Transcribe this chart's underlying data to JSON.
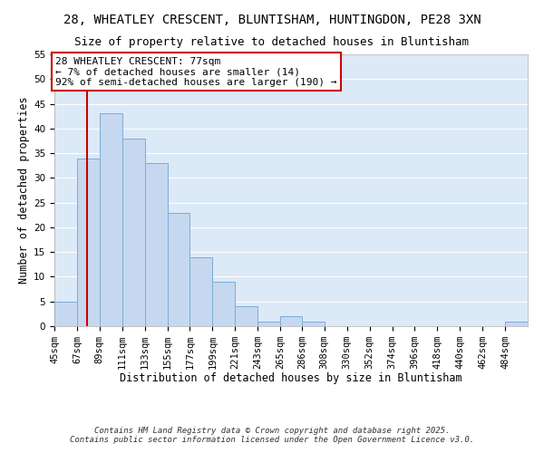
{
  "title": "28, WHEATLEY CRESCENT, BLUNTISHAM, HUNTINGDON, PE28 3XN",
  "subtitle": "Size of property relative to detached houses in Bluntisham",
  "xlabel": "Distribution of detached houses by size in Bluntisham",
  "ylabel": "Number of detached properties",
  "bar_values": [
    5,
    34,
    43,
    38,
    33,
    23,
    14,
    9,
    4,
    1,
    2,
    1,
    0,
    0,
    0,
    0,
    0,
    0,
    0,
    0,
    1
  ],
  "bin_edges": [
    45,
    67,
    89,
    111,
    133,
    155,
    177,
    199,
    221,
    243,
    265,
    286,
    308,
    330,
    352,
    374,
    396,
    418,
    440,
    462,
    484,
    506
  ],
  "tick_labels": [
    "45sqm",
    "67sqm",
    "89sqm",
    "111sqm",
    "133sqm",
    "155sqm",
    "177sqm",
    "199sqm",
    "221sqm",
    "243sqm",
    "265sqm",
    "286sqm",
    "308sqm",
    "330sqm",
    "352sqm",
    "374sqm",
    "396sqm",
    "418sqm",
    "440sqm",
    "462sqm",
    "484sqm"
  ],
  "bar_color": "#c5d8f0",
  "bar_edge_color": "#7badd4",
  "vline_x": 77,
  "vline_color": "#cc0000",
  "ylim": [
    0,
    55
  ],
  "yticks": [
    0,
    5,
    10,
    15,
    20,
    25,
    30,
    35,
    40,
    45,
    50,
    55
  ],
  "background_color": "#ffffff",
  "plot_bg_color": "#dce9f7",
  "grid_color": "#ffffff",
  "annotation_line1": "28 WHEATLEY CRESCENT: 77sqm",
  "annotation_line2": "← 7% of detached houses are smaller (14)",
  "annotation_line3": "92% of semi-detached houses are larger (190) →",
  "annotation_box_color": "#ffffff",
  "annotation_box_edge_color": "#cc0000",
  "footer_line1": "Contains HM Land Registry data © Crown copyright and database right 2025.",
  "footer_line2": "Contains public sector information licensed under the Open Government Licence v3.0.",
  "title_fontsize": 10,
  "subtitle_fontsize": 9,
  "label_fontsize": 8.5,
  "tick_fontsize": 7.5,
  "annotation_fontsize": 8,
  "footer_fontsize": 6.5
}
